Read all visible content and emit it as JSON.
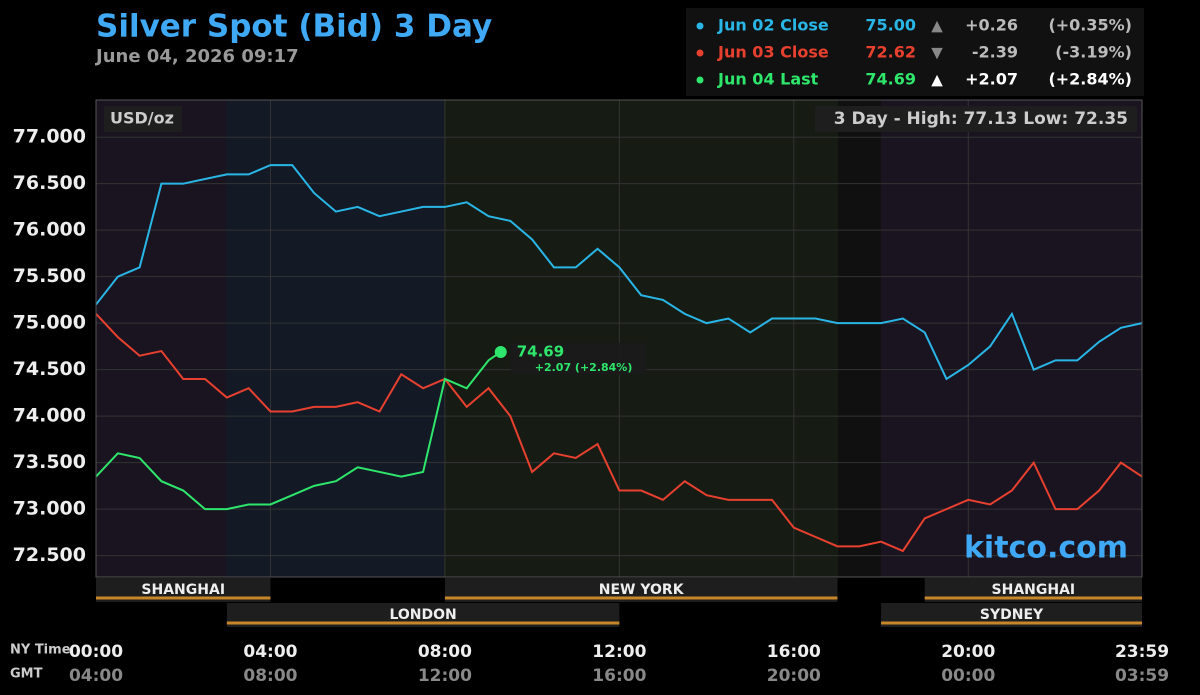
{
  "chart_data": {
    "type": "line",
    "title": "Silver Spot (Bid) 3 Day",
    "subtitle": "June 04, 2026 09:17",
    "unit_label": "USD/oz",
    "range_label": "3 Day - High: 77.13  Low: 72.35",
    "watermark": "kitco.com",
    "x_axis_label": "NY Time",
    "x2_axis_label": "GMT",
    "xlim": [
      0,
      23.983
    ],
    "xticks": [
      {
        "value": 0,
        "label": "00:00"
      },
      {
        "value": 4,
        "label": "04:00"
      },
      {
        "value": 8,
        "label": "08:00"
      },
      {
        "value": 12,
        "label": "12:00"
      },
      {
        "value": 16,
        "label": "16:00"
      },
      {
        "value": 20,
        "label": "20:00"
      },
      {
        "value": 23.983,
        "label": "23:59"
      }
    ],
    "x2ticks": [
      {
        "value": 0,
        "label": "04:00"
      },
      {
        "value": 4,
        "label": "08:00"
      },
      {
        "value": 8,
        "label": "12:00"
      },
      {
        "value": 12,
        "label": "16:00"
      },
      {
        "value": 16,
        "label": "20:00"
      },
      {
        "value": 20,
        "label": "00:00"
      },
      {
        "value": 23.983,
        "label": "03:59"
      }
    ],
    "ylim": [
      72.27,
      77.4
    ],
    "yticks": [
      {
        "value": 72.5,
        "label": "72.500"
      },
      {
        "value": 73,
        "label": "73.000"
      },
      {
        "value": 73.5,
        "label": "73.500"
      },
      {
        "value": 74,
        "label": "74.000"
      },
      {
        "value": 74.5,
        "label": "74.500"
      },
      {
        "value": 75,
        "label": "75.000"
      },
      {
        "value": 75.5,
        "label": "75.500"
      },
      {
        "value": 76,
        "label": "76.000"
      },
      {
        "value": 76.5,
        "label": "76.500"
      },
      {
        "value": 77,
        "label": "77.000"
      }
    ],
    "grid": true,
    "sessions_top": [
      {
        "name": "SHANGHAI",
        "start": 0,
        "end": 4
      },
      {
        "name": "NEW YORK",
        "start": 8,
        "end": 17
      },
      {
        "name": "SHANGHAI",
        "start": 19,
        "end": 23.983
      }
    ],
    "sessions_bottom": [
      {
        "name": "LONDON",
        "start": 3,
        "end": 12
      },
      {
        "name": "SYDNEY",
        "start": 18,
        "end": 23.983
      }
    ],
    "series": [
      {
        "name": "Jun 02 Close",
        "color": "#29b6e6",
        "summary": {
          "price": "75.00",
          "arrow": "▲",
          "change": "+0.26",
          "percent": "(+0.35%)"
        },
        "x": [
          0,
          0.5,
          1,
          1.5,
          2,
          2.5,
          3,
          3.5,
          4,
          4.5,
          5,
          5.5,
          6,
          6.5,
          7,
          7.5,
          8,
          8.5,
          9,
          9.5,
          10,
          10.5,
          11,
          11.5,
          12,
          12.5,
          13,
          13.5,
          14,
          14.5,
          15,
          15.5,
          16,
          16.5,
          17,
          17.5,
          18,
          18.5,
          19,
          19.5,
          20,
          20.5,
          21,
          21.5,
          22,
          22.5,
          23,
          23.5,
          23.983
        ],
        "values": [
          75.2,
          75.5,
          75.6,
          76.5,
          76.5,
          76.55,
          76.6,
          76.6,
          76.7,
          76.7,
          76.4,
          76.2,
          76.25,
          76.15,
          76.2,
          76.25,
          76.25,
          76.3,
          76.15,
          76.1,
          75.9,
          75.6,
          75.6,
          75.8,
          75.6,
          75.3,
          75.25,
          75.1,
          75.0,
          75.05,
          74.9,
          75.05,
          75.05,
          75.05,
          75.0,
          75.0,
          75.0,
          75.05,
          74.9,
          74.4,
          74.55,
          74.75,
          75.1,
          74.5,
          74.6,
          74.6,
          74.8,
          74.95,
          75.0
        ]
      },
      {
        "name": "Jun 03 Close",
        "color": "#e8402f",
        "summary": {
          "price": "72.62",
          "arrow": "▼",
          "change": "-2.39",
          "percent": "(-3.19%)"
        },
        "x": [
          0,
          0.5,
          1,
          1.5,
          2,
          2.5,
          3,
          3.5,
          4,
          4.5,
          5,
          5.5,
          6,
          6.5,
          7,
          7.5,
          8,
          8.5,
          9,
          9.5,
          10,
          10.5,
          11,
          11.5,
          12,
          12.5,
          13,
          13.5,
          14,
          14.5,
          15,
          15.5,
          16,
          16.5,
          17,
          17.5,
          18,
          18.5,
          19,
          19.5,
          20,
          20.5,
          21,
          21.5,
          22,
          22.5,
          23,
          23.5,
          23.983
        ],
        "values": [
          75.1,
          74.85,
          74.65,
          74.7,
          74.4,
          74.4,
          74.2,
          74.3,
          74.05,
          74.05,
          74.1,
          74.1,
          74.15,
          74.05,
          74.45,
          74.3,
          74.4,
          74.1,
          74.3,
          74.0,
          73.4,
          73.6,
          73.55,
          73.7,
          73.2,
          73.2,
          73.1,
          73.3,
          73.15,
          73.1,
          73.1,
          73.1,
          72.8,
          72.7,
          72.6,
          72.6,
          72.65,
          72.55,
          72.9,
          73.0,
          73.1,
          73.05,
          73.2,
          73.5,
          73.0,
          73.0,
          73.2,
          73.5,
          73.35
        ]
      },
      {
        "name": "Jun 04 Last",
        "color": "#2ee66b",
        "summary": {
          "price": "74.69",
          "arrow": "▲",
          "change": "+2.07",
          "percent": "(+2.84%)"
        },
        "x": [
          0,
          0.5,
          1,
          1.5,
          2,
          2.5,
          3,
          3.5,
          4,
          4.5,
          5,
          5.5,
          6,
          6.5,
          7,
          7.5,
          8,
          8.5,
          9,
          9.28
        ],
        "values": [
          73.35,
          73.6,
          73.55,
          73.3,
          73.2,
          73.0,
          73.0,
          73.05,
          73.05,
          73.15,
          73.25,
          73.3,
          73.45,
          73.4,
          73.35,
          73.4,
          74.4,
          74.3,
          74.6,
          74.69
        ]
      }
    ],
    "annotation": {
      "x": 9.28,
      "value": 74.69,
      "change": "+2.07 (+2.84%)"
    }
  }
}
